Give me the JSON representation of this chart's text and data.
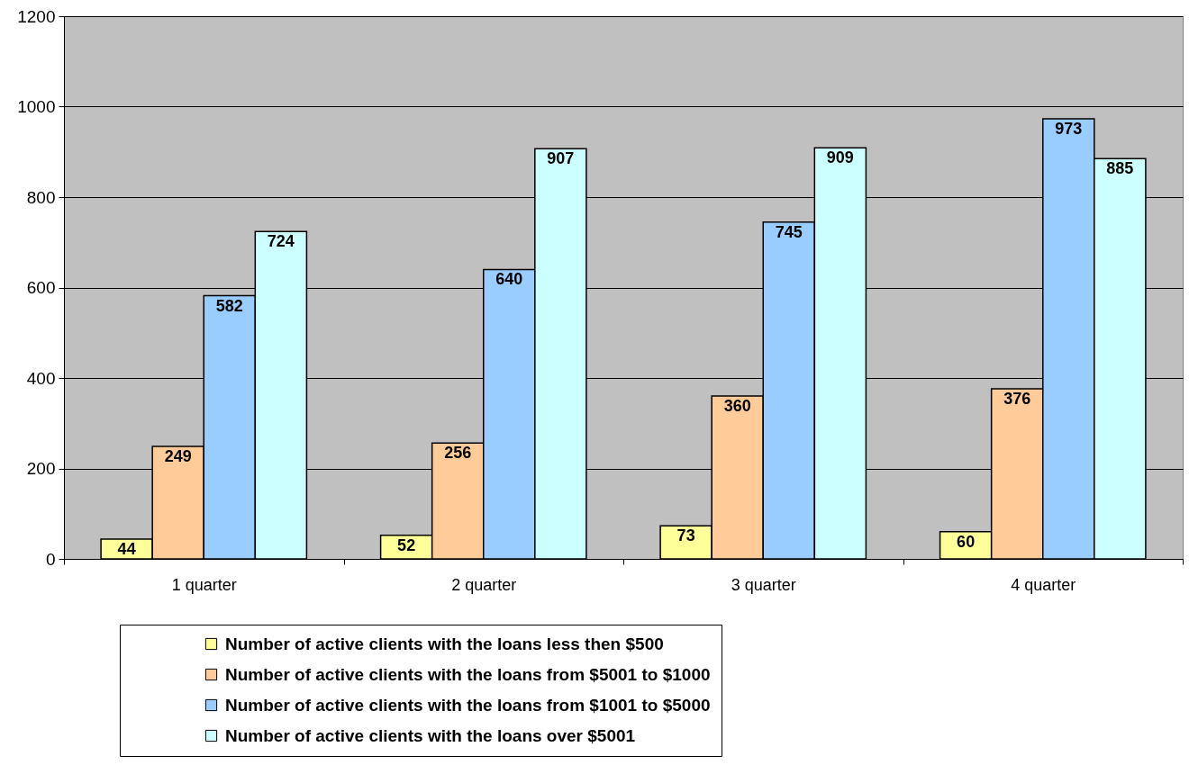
{
  "chart_data": {
    "type": "bar",
    "categories": [
      "1 quarter",
      "2 quarter",
      "3 quarter",
      "4 quarter"
    ],
    "series": [
      {
        "name": "Number of active clients with the loans less then $500",
        "color": "#ffff99",
        "values": [
          44,
          52,
          73,
          60
        ]
      },
      {
        "name": "Number of active clients with the loans from $5001 to $1000",
        "color": "#ffcc99",
        "values": [
          249,
          256,
          360,
          376
        ]
      },
      {
        "name": "Number of active clients with the loans from $1001 to $5000",
        "color": "#99ccff",
        "values": [
          582,
          640,
          745,
          973
        ]
      },
      {
        "name": "Number of active clients with the loans over $5001",
        "color": "#ccffff",
        "values": [
          724,
          907,
          909,
          885
        ]
      }
    ],
    "ylim": [
      0,
      1200
    ],
    "yticks": [
      0,
      200,
      400,
      600,
      800,
      1000,
      1200
    ],
    "grid": "y",
    "legend": "bottom",
    "data_labels": true
  }
}
